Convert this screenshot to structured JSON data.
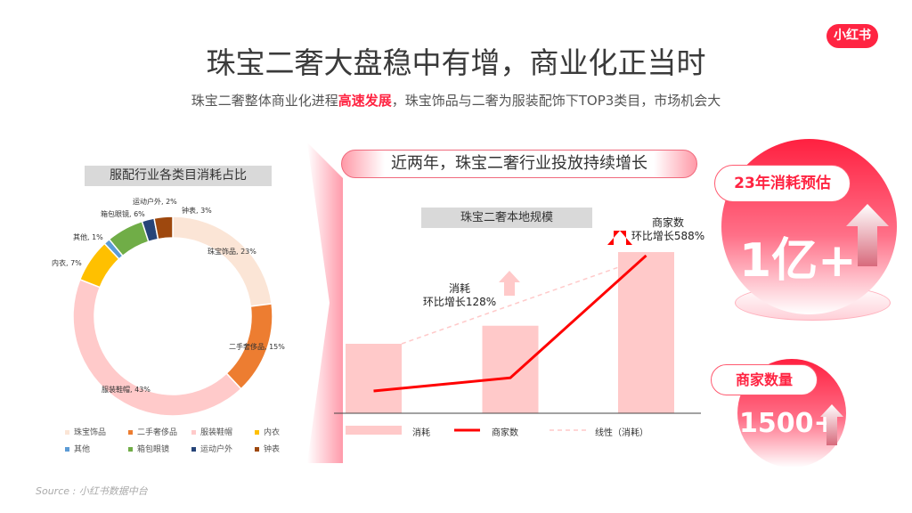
{
  "logo": "小红书",
  "title": "珠宝二奢大盘稳中有增，商业化正当时",
  "subtitle": {
    "before": "珠宝二奢整体商业化进程",
    "highlight": "高速发展",
    "after": "，珠宝饰品与二奢为服装配饰下TOP3类目，市场机会大"
  },
  "colors": {
    "brand": "#ff2442",
    "bar": "#ffc9c9",
    "line": "#ff0000"
  },
  "chart_data": [
    {
      "type": "pie",
      "title": "服配行业各类目消耗占比",
      "donut": true,
      "legend": "bottom",
      "slices": [
        {
          "label": "珠宝饰品",
          "value": 23,
          "text": "珠宝饰品, 23%",
          "color": "#fbe5d6"
        },
        {
          "label": "二手奢侈品",
          "value": 15,
          "text": "二手奢侈品, 15%",
          "color": "#ed7d31"
        },
        {
          "label": "服装鞋帽",
          "value": 43,
          "text": "服装鞋帽, 43%",
          "color": "#ffcaca"
        },
        {
          "label": "内衣",
          "value": 7,
          "text": "内衣, 7%",
          "color": "#ffc000"
        },
        {
          "label": "其他",
          "value": 1,
          "text": "其他, 1%",
          "color": "#5b9bd5"
        },
        {
          "label": "箱包眼镜",
          "value": 6,
          "text": "箱包眼镜, 6%",
          "color": "#70ad47"
        },
        {
          "label": "运动户外",
          "value": 2,
          "text": "运动户外, 2%",
          "color": "#264478"
        },
        {
          "label": "钟表",
          "value": 3,
          "text": "钟表, 3%",
          "color": "#9e480e"
        }
      ]
    },
    {
      "type": "bar",
      "title": "珠宝二奢本地规模",
      "categories": [
        "",
        "",
        ""
      ],
      "series": [
        {
          "name": "消耗",
          "type": "bar",
          "values": [
            1,
            1.26,
            2.32
          ]
        },
        {
          "name": "商家数",
          "type": "line",
          "values": [
            0.32,
            0.51,
            2.27
          ]
        },
        {
          "name": "线性（消耗）",
          "type": "dashed-trend",
          "values": [
            1,
            1.6,
            2.1
          ]
        }
      ],
      "annotations": [
        {
          "line1": "消耗",
          "line2": "环比增长128%"
        },
        {
          "line1": "商家数",
          "line2": "环比增长588%"
        }
      ]
    }
  ],
  "banner": "近两年，珠宝二奢行业投放持续增长",
  "stats": [
    {
      "label": "23年消耗预估",
      "value": "1亿+"
    },
    {
      "label": "商家数量",
      "value": "1500+"
    }
  ],
  "source": "Source : 小红书数据中台"
}
